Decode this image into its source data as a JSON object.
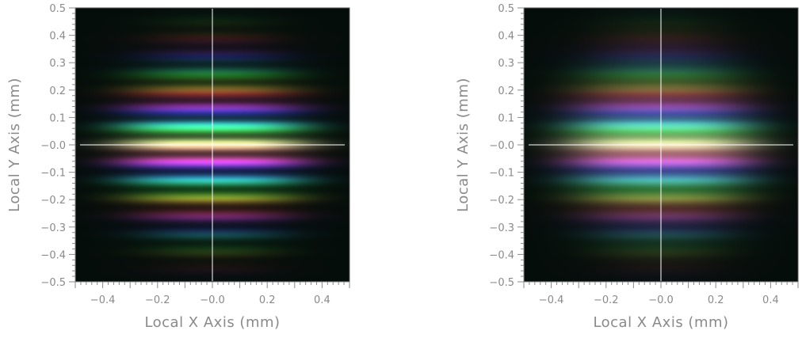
{
  "chart_data": [
    {
      "type": "heatmap",
      "description_visible": "interference fringe pattern (horizontal colored bands)",
      "xlabel": "Local X Axis (mm)",
      "ylabel": "Local Y Axis (mm)",
      "xlim": [
        -0.5,
        0.5
      ],
      "ylim": [
        -0.5,
        0.5
      ],
      "x_ticks": [
        -0.4,
        -0.2,
        0.0,
        0.2,
        0.4
      ],
      "x_tick_labels": [
        "−0.4",
        "−0.2",
        "−0.0",
        "0.2",
        "0.4"
      ],
      "y_ticks": [
        0.5,
        0.4,
        0.3,
        0.2,
        0.1,
        0.0,
        -0.1,
        -0.2,
        -0.3,
        -0.4,
        -0.5
      ],
      "y_tick_labels": [
        "0.5",
        "0.4",
        "0.3",
        "0.2",
        "0.1",
        "−0.0",
        "−0.1",
        "−0.2",
        "−0.3",
        "−0.4",
        "−0.5"
      ],
      "crosshair": {
        "x": 0.0,
        "y": 0.0,
        "color": "#ffffff"
      },
      "fringe_contrast": 1.0,
      "fringe_period_mm": 0.065,
      "central_brightness": 1.0
    },
    {
      "type": "heatmap",
      "description_visible": "interference fringe pattern (horizontal colored bands)",
      "xlabel": "Local X Axis (mm)",
      "ylabel": "Local Y Axis (mm)",
      "xlim": [
        -0.5,
        0.5
      ],
      "ylim": [
        -0.5,
        0.5
      ],
      "x_ticks": [
        -0.4,
        -0.2,
        0.0,
        0.2,
        0.4
      ],
      "x_tick_labels": [
        "−0.4",
        "−0.2",
        "−0.0",
        "0.2",
        "0.4"
      ],
      "y_ticks": [
        0.5,
        0.4,
        0.3,
        0.2,
        0.1,
        0.0,
        -0.1,
        -0.2,
        -0.3,
        -0.4,
        -0.5
      ],
      "y_tick_labels": [
        "0.5",
        "0.4",
        "0.3",
        "0.2",
        "0.1",
        "−0.0",
        "−0.1",
        "−0.2",
        "−0.3",
        "−0.4",
        "−0.5"
      ],
      "crosshair": {
        "x": 0.0,
        "y": 0.0,
        "color": "#ffffff"
      },
      "fringe_contrast": 0.45,
      "fringe_period_mm": 0.065,
      "central_brightness": 0.9
    }
  ],
  "colors": {
    "axis": "#8a8a8a",
    "plot_frame": "#555555",
    "background": "#ffffff"
  }
}
